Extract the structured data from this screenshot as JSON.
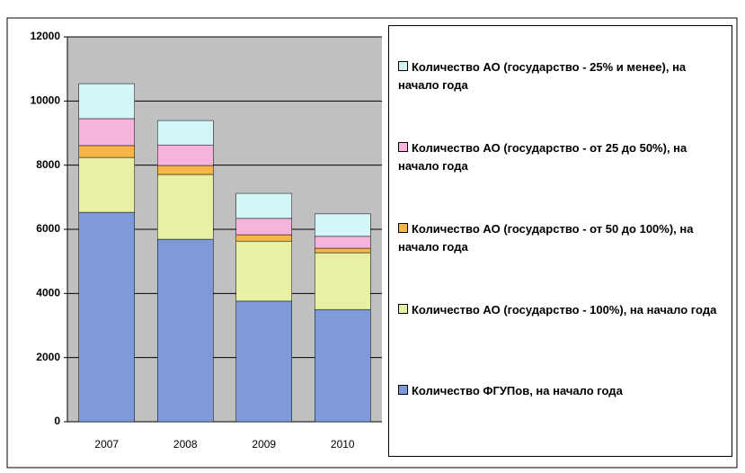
{
  "chart_data": {
    "type": "stacked_bar",
    "categories": [
      "2007",
      "2008",
      "2009",
      "2010"
    ],
    "series": [
      {
        "name": "Количество ФГУПов, на начало года",
        "color": "#7e9ad8",
        "values": [
          6530,
          5690,
          3760,
          3500
        ]
      },
      {
        "name": "Количество АО (государство - 100%), на начало года",
        "color": "#e8f0a4",
        "values": [
          1710,
          2020,
          1870,
          1770
        ]
      },
      {
        "name": "Количество АО (государство - от 50 до 100%), на начало года",
        "color": "#f6b648",
        "values": [
          370,
          280,
          200,
          140
        ]
      },
      {
        "name": "Количество АО (государство - от 25 до 50%), на начало года",
        "color": "#f4b4dc",
        "values": [
          840,
          640,
          510,
          370
        ]
      },
      {
        "name": "Количество АО (государство - 25% и менее), на начало года",
        "color": "#d4f6f6",
        "values": [
          1090,
          760,
          780,
          700
        ]
      }
    ],
    "ylim": [
      0,
      12000
    ],
    "yticks": [
      0,
      2000,
      4000,
      6000,
      8000,
      10000,
      12000
    ],
    "grid": true,
    "legend": "right"
  }
}
